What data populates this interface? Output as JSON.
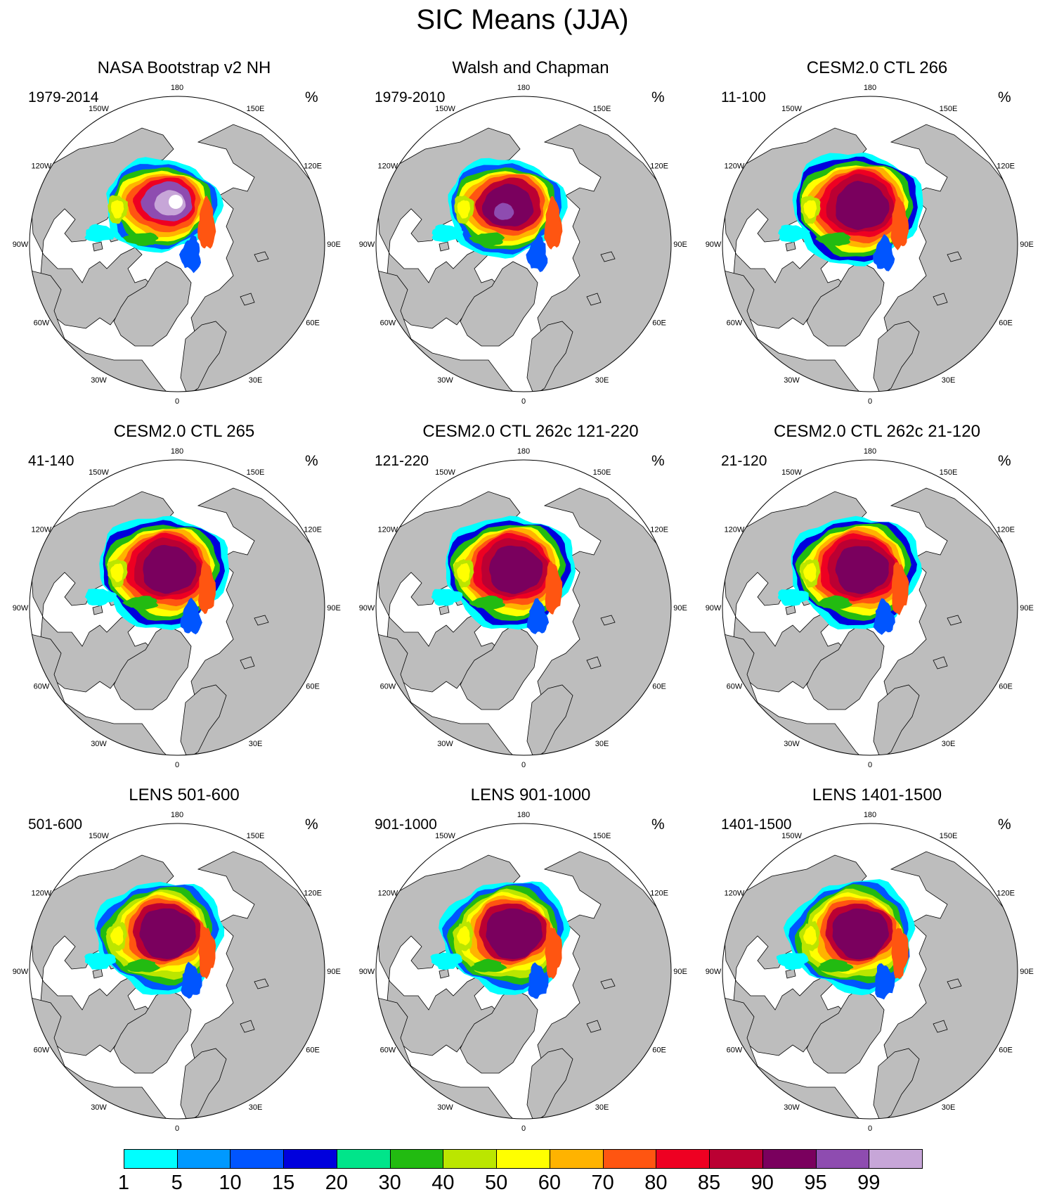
{
  "figure": {
    "title": "SIC Means (JJA)"
  },
  "panels": [
    {
      "title": "NASA Bootstrap v2 NH",
      "period": "1979-2014",
      "unit": "%",
      "style": "obs1"
    },
    {
      "title": "Walsh and Chapman",
      "period": "1979-2010",
      "unit": "%",
      "style": "obs2"
    },
    {
      "title": "CESM2.0 CTL 266",
      "period": "11-100",
      "unit": "%",
      "style": "model"
    },
    {
      "title": "CESM2.0 CTL 265",
      "period": "41-140",
      "unit": "%",
      "style": "model"
    },
    {
      "title": "CESM2.0 CTL 262c 121-220",
      "period": "121-220",
      "unit": "%",
      "style": "model"
    },
    {
      "title": "CESM2.0 CTL 262c 21-120",
      "period": "21-120",
      "unit": "%",
      "style": "model"
    },
    {
      "title": "LENS 501-600",
      "period": "501-600",
      "unit": "%",
      "style": "lens"
    },
    {
      "title": "LENS 901-1000",
      "period": "901-1000",
      "unit": "%",
      "style": "lens"
    },
    {
      "title": "LENS 1401-1500",
      "period": "1401-1500",
      "unit": "%",
      "style": "lens"
    }
  ],
  "longitude_labels": [
    "180",
    "150E",
    "120E",
    "90E",
    "60E",
    "30E",
    "0",
    "30W",
    "60W",
    "90W",
    "120W",
    "150W"
  ],
  "colorbar": {
    "levels": [
      "1",
      "5",
      "10",
      "15",
      "20",
      "30",
      "40",
      "50",
      "60",
      "70",
      "80",
      "85",
      "90",
      "95",
      "99"
    ],
    "colors": [
      "#00ffff",
      "#0099ff",
      "#0055ff",
      "#0000dd",
      "#00e58a",
      "#22bb11",
      "#bbe600",
      "#ffff00",
      "#ffb300",
      "#ff5511",
      "#ee0022",
      "#bb0033",
      "#7a005e",
      "#8e4cb0",
      "#c7a6d8"
    ]
  },
  "map_colors": {
    "land": "#bdbdbd",
    "ocean": "#ffffff"
  }
}
